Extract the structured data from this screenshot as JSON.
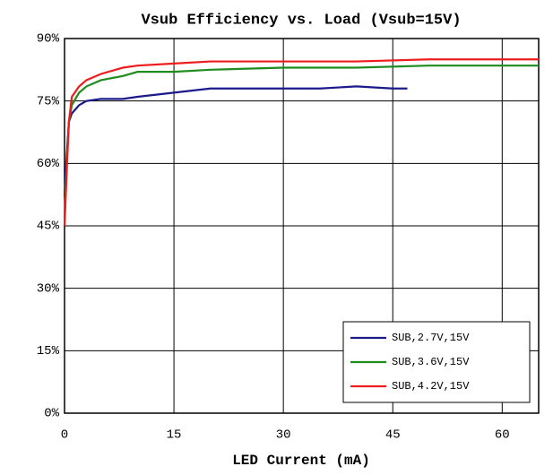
{
  "chart_data": {
    "type": "line",
    "title": "Vsub Efficiency vs. Load (Vsub=15V)",
    "x_label": "LED Current (mA)",
    "xlim": [
      0,
      65
    ],
    "xticks": [
      0,
      15,
      30,
      45,
      60
    ],
    "ylim": [
      0,
      90
    ],
    "yticks": [
      {
        "value": 0,
        "label": "0%"
      },
      {
        "value": 15,
        "label": "15%"
      },
      {
        "value": 30,
        "label": "30%"
      },
      {
        "value": 45,
        "label": "45%"
      },
      {
        "value": 60,
        "label": "60%"
      },
      {
        "value": 75,
        "label": "75%"
      },
      {
        "value": 90,
        "label": "90%"
      }
    ],
    "grid": true,
    "legend": "lower right",
    "series": [
      {
        "name": "SUB,2.7V,15V",
        "color": "#1a1a8c",
        "x": [
          0,
          0.3,
          0.6,
          1,
          2,
          3,
          5,
          8,
          10,
          15,
          20,
          25,
          30,
          35,
          40,
          45,
          47
        ],
        "values": [
          52,
          62,
          70,
          72,
          74,
          75,
          75.5,
          75.5,
          76,
          77,
          78,
          78,
          78,
          78,
          78.5,
          78,
          78
        ]
      },
      {
        "name": "SUB,3.6V,15V",
        "color": "#1e8c1e",
        "x": [
          0,
          0.3,
          0.6,
          1,
          2,
          3,
          5,
          8,
          10,
          15,
          20,
          30,
          40,
          50,
          65
        ],
        "values": [
          47,
          60,
          70,
          74,
          77,
          78.5,
          80,
          81,
          82,
          82,
          82.5,
          83,
          83,
          83.5,
          83.5
        ]
      },
      {
        "name": "SUB,4.2V,15V",
        "color": "#ee1c1c",
        "x": [
          0,
          0.3,
          0.6,
          1,
          2,
          3,
          5,
          8,
          10,
          15,
          20,
          30,
          40,
          50,
          65
        ],
        "values": [
          45,
          58,
          70,
          76,
          78.5,
          80,
          81.5,
          83,
          83.5,
          84,
          84.5,
          84.5,
          84.5,
          85,
          85
        ]
      }
    ]
  }
}
